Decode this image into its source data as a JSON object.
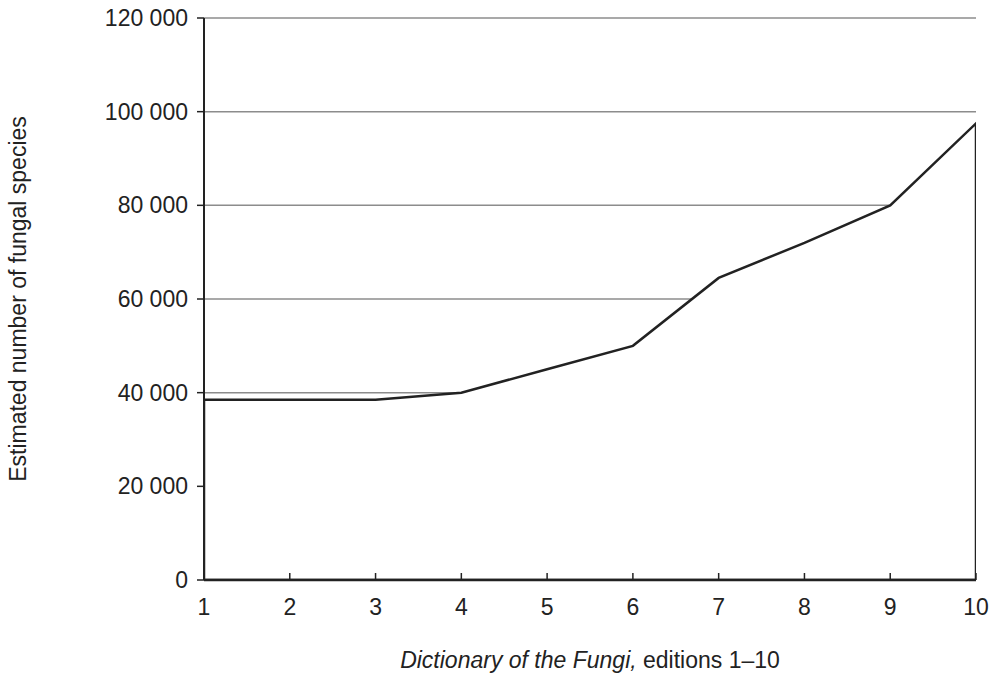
{
  "chart_data": {
    "type": "area",
    "x_label": "Dictionary of the Fungi, editions 1–10",
    "y_label": "Estimated number of fungal species",
    "x": [
      1,
      2,
      3,
      4,
      5,
      6,
      7,
      8,
      9,
      10
    ],
    "values": [
      38500,
      38500,
      38500,
      40000,
      45000,
      50000,
      64500,
      72000,
      80000,
      97500
    ],
    "color": "#222222",
    "xlim": [
      1,
      10
    ],
    "xticks": [
      1,
      2,
      3,
      4,
      5,
      6,
      7,
      8,
      9,
      10
    ],
    "ylim": [
      0,
      120000
    ],
    "yticks": [
      0,
      {
        "value": 20000,
        "label": "20 000"
      },
      {
        "value": 40000,
        "label": "40 000"
      },
      {
        "value": 60000,
        "label": "60 000"
      },
      {
        "value": 80000,
        "label": "80 000"
      },
      {
        "value": 100000,
        "label": "100 000"
      },
      {
        "value": 120000,
        "label": "120 000"
      }
    ],
    "grid": true
  }
}
